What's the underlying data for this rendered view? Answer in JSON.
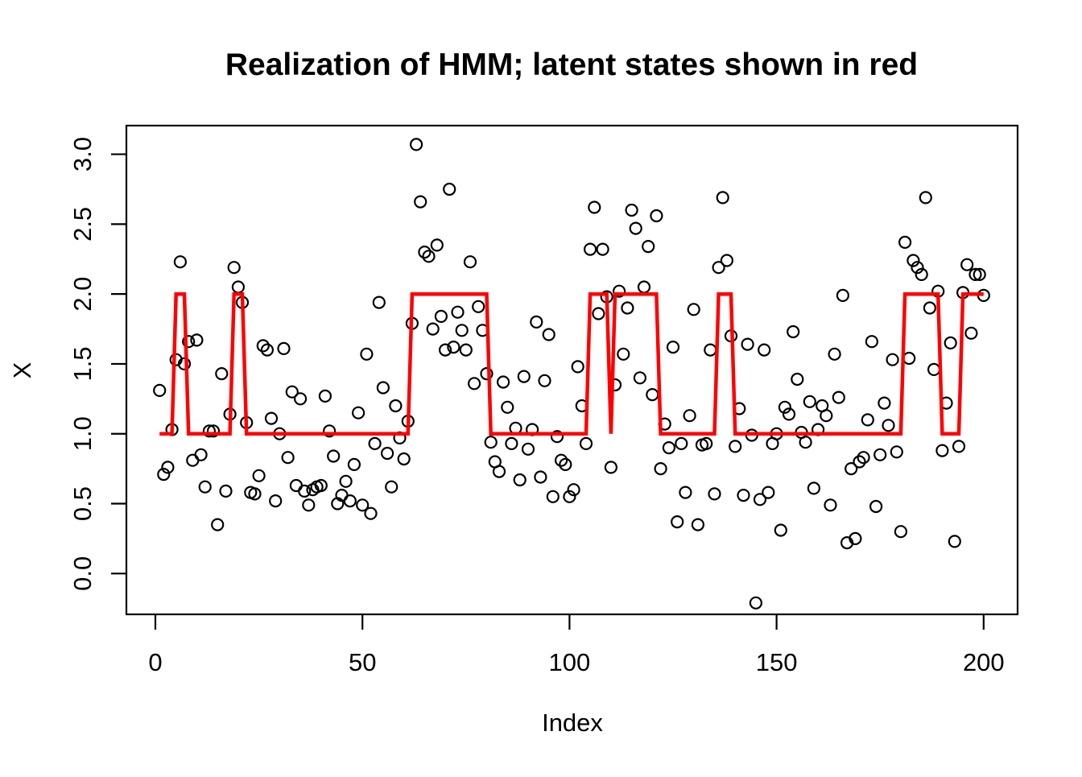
{
  "chart_data": {
    "type": "scatter",
    "title": "Realization of HMM; latent states shown in red",
    "xlabel": "Index",
    "ylabel": "X",
    "x_ticks": [
      0,
      50,
      100,
      150,
      200
    ],
    "x_tick_labels": [
      "0",
      "50",
      "100",
      "150",
      "200"
    ],
    "y_ticks": [
      0.0,
      0.5,
      1.0,
      1.5,
      2.0,
      2.5,
      3.0
    ],
    "y_tick_labels": [
      "0.0",
      "0.5",
      "1.0",
      "1.5",
      "2.0",
      "2.5",
      "3.0"
    ],
    "xlim": [
      -7.0,
      208.2
    ],
    "ylim": [
      -0.292,
      3.205
    ],
    "grid": false,
    "legend_position": "none",
    "colors": {
      "observations": "#000000",
      "latent_states": "#FF0000",
      "background": "#FFFFFF"
    },
    "series": [
      {
        "name": "observations",
        "type": "scatter",
        "marker": "open-circle",
        "color": "#000000",
        "x_start": 1,
        "y": [
          1.31,
          0.71,
          0.76,
          1.03,
          1.53,
          2.23,
          1.5,
          1.66,
          0.81,
          1.67,
          0.85,
          0.62,
          1.02,
          1.02,
          0.35,
          1.43,
          0.59,
          1.14,
          2.19,
          2.05,
          1.94,
          1.08,
          0.58,
          0.57,
          0.7,
          1.63,
          1.6,
          1.11,
          0.52,
          1.0,
          1.61,
          0.83,
          1.3,
          0.63,
          1.25,
          0.59,
          0.49,
          0.6,
          0.62,
          0.63,
          1.27,
          1.02,
          0.84,
          0.5,
          0.56,
          0.66,
          0.52,
          0.78,
          1.15,
          0.49,
          1.57,
          0.43,
          0.93,
          1.94,
          1.33,
          0.86,
          0.62,
          1.2,
          0.97,
          0.82,
          1.09,
          1.79,
          3.07,
          2.66,
          2.3,
          2.27,
          1.75,
          2.35,
          1.84,
          1.6,
          2.75,
          1.62,
          1.87,
          1.74,
          1.6,
          2.23,
          1.36,
          1.91,
          1.74,
          1.43,
          0.94,
          0.8,
          0.73,
          1.37,
          1.19,
          0.93,
          1.04,
          0.67,
          1.41,
          0.89,
          1.03,
          1.8,
          0.69,
          1.38,
          1.71,
          0.55,
          0.98,
          0.81,
          0.78,
          0.55,
          0.6,
          1.48,
          1.2,
          0.93,
          2.32,
          2.62,
          1.86,
          2.32,
          1.98,
          0.76,
          1.35,
          2.02,
          1.57,
          1.9,
          2.6,
          2.47,
          1.4,
          2.05,
          2.34,
          1.28,
          2.56,
          0.75,
          1.07,
          0.9,
          1.62,
          0.37,
          0.93,
          0.58,
          1.13,
          1.89,
          0.35,
          0.92,
          0.93,
          1.6,
          0.57,
          2.19,
          2.69,
          2.24,
          1.7,
          0.91,
          1.18,
          0.56,
          1.64,
          0.99,
          -0.21,
          0.53,
          1.6,
          0.58,
          0.93,
          1.0,
          0.31,
          1.19,
          1.14,
          1.73,
          1.39,
          1.01,
          0.94,
          1.23,
          0.61,
          1.03,
          1.2,
          1.13,
          0.49,
          1.57,
          1.26,
          1.99,
          0.22,
          0.75,
          0.25,
          0.8,
          0.83,
          1.1,
          1.66,
          0.48,
          0.85,
          1.22,
          1.06,
          1.53,
          0.87,
          0.3,
          2.37,
          1.54,
          2.24,
          2.19,
          2.14,
          2.69,
          1.9,
          1.46,
          2.02,
          0.88,
          1.22,
          1.65,
          0.23,
          0.91,
          2.01,
          2.21,
          1.72,
          2.14,
          2.14,
          1.99
        ]
      },
      {
        "name": "latent-states",
        "type": "step-line",
        "color": "#FF0000",
        "runs": [
          {
            "value": 1,
            "from": 1,
            "to": 4
          },
          {
            "value": 2,
            "from": 5,
            "to": 7
          },
          {
            "value": 1,
            "from": 8,
            "to": 18
          },
          {
            "value": 2,
            "from": 19,
            "to": 21
          },
          {
            "value": 1,
            "from": 22,
            "to": 61
          },
          {
            "value": 2,
            "from": 62,
            "to": 80
          },
          {
            "value": 1,
            "from": 81,
            "to": 104
          },
          {
            "value": 2,
            "from": 105,
            "to": 109
          },
          {
            "value": 1,
            "from": 110,
            "to": 110
          },
          {
            "value": 2,
            "from": 111,
            "to": 121
          },
          {
            "value": 1,
            "from": 122,
            "to": 135
          },
          {
            "value": 2,
            "from": 136,
            "to": 139
          },
          {
            "value": 1,
            "from": 140,
            "to": 180
          },
          {
            "value": 2,
            "from": 181,
            "to": 189
          },
          {
            "value": 1,
            "from": 190,
            "to": 194
          },
          {
            "value": 2,
            "from": 195,
            "to": 200
          }
        ]
      }
    ]
  }
}
